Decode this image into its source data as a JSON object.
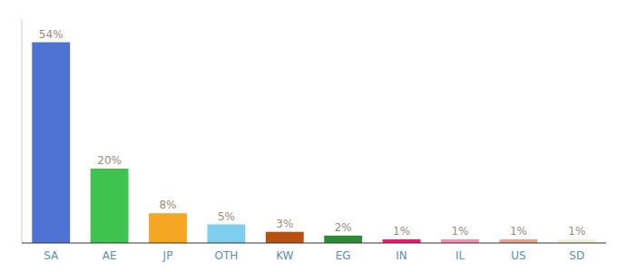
{
  "chart_data": {
    "type": "bar",
    "categories": [
      "SA",
      "AE",
      "JP",
      "OTH",
      "KW",
      "EG",
      "IN",
      "IL",
      "US",
      "SD"
    ],
    "values": [
      54,
      20,
      8,
      5,
      3,
      2,
      1,
      1,
      1,
      1
    ],
    "value_labels": [
      "54%",
      "20%",
      "8%",
      "5%",
      "3%",
      "2%",
      "1%",
      "1%",
      "1%",
      "1%"
    ],
    "colors": [
      "#4d72d4",
      "#3ec34e",
      "#f5a623",
      "#7ecfed",
      "#b85010",
      "#2e8b35",
      "#f0186e",
      "#f48fb1",
      "#e8a090",
      "#f5f0d8"
    ],
    "ylim": [
      0,
      60
    ],
    "data_labels": true,
    "grid": false,
    "tick_labels": "x"
  }
}
